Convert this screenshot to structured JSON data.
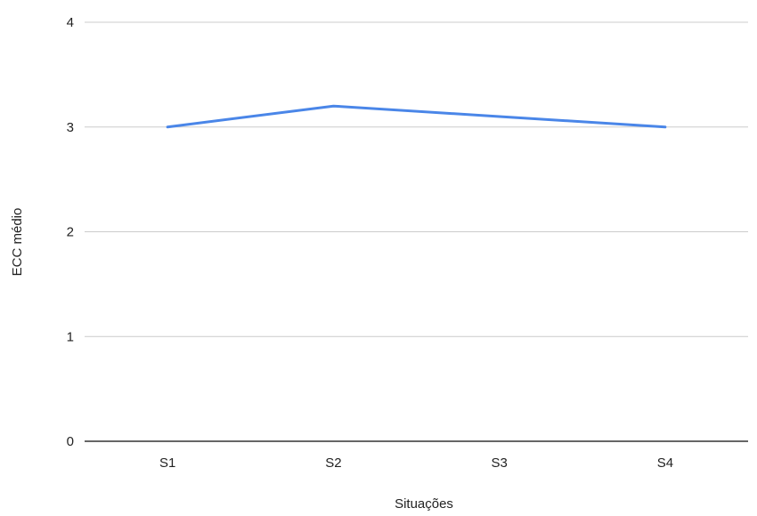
{
  "chart_data": {
    "type": "line",
    "title": "",
    "xlabel": "Situações",
    "ylabel": "ECC médio",
    "categories": [
      "S1",
      "S2",
      "S3",
      "S4"
    ],
    "series": [
      {
        "values": [
          3.0,
          3.2,
          3.1,
          3.0
        ],
        "color": "#4a86e8"
      }
    ],
    "ylim": [
      0,
      4
    ],
    "yticks": [
      "0",
      "1",
      "2",
      "3",
      "4"
    ],
    "grid": true,
    "legend": "none",
    "gridline_color": "#cccccc",
    "axis_color": "#333333"
  }
}
